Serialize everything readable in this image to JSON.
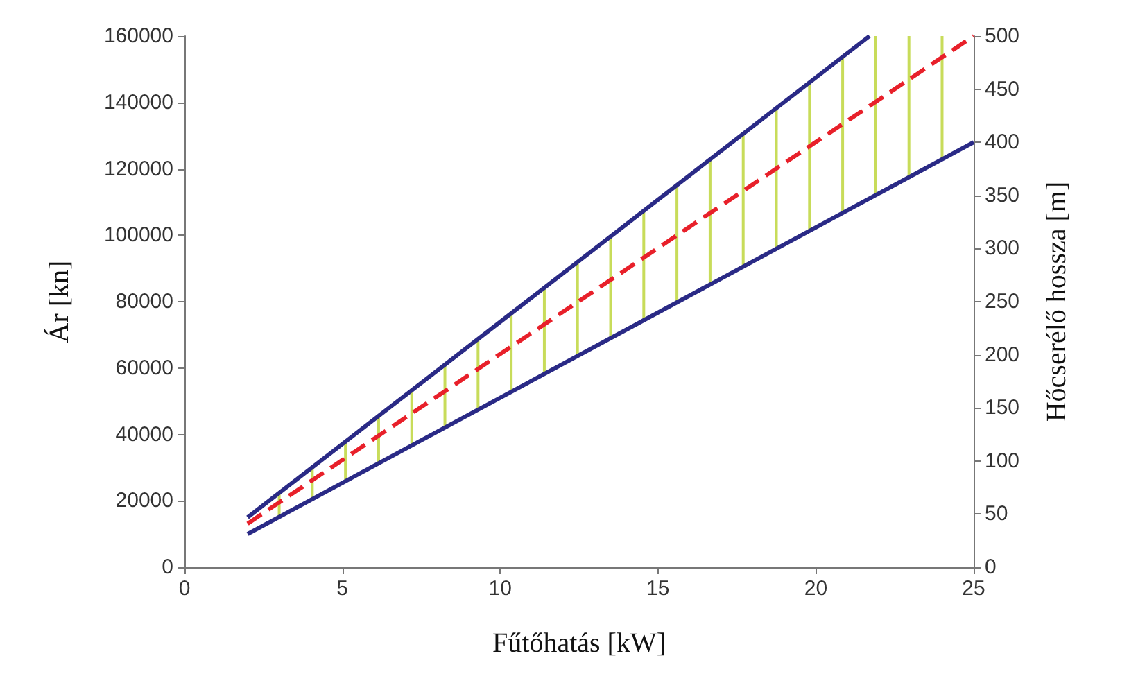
{
  "chart_data": {
    "type": "line",
    "xlabel": "Fűtőhatás [kW]",
    "ylabel": "Ár [kn]",
    "y2label": "Hőcserélő hossza [m]",
    "xlim": [
      0,
      25
    ],
    "xticks": [
      0,
      5,
      10,
      15,
      20,
      25
    ],
    "ylim": [
      0,
      160000
    ],
    "yticks": [
      0,
      20000,
      40000,
      60000,
      80000,
      100000,
      120000,
      140000,
      160000
    ],
    "y2lim": [
      0,
      500
    ],
    "y2ticks": [
      0,
      50,
      100,
      150,
      200,
      250,
      300,
      350,
      400,
      450,
      500
    ],
    "grid": false,
    "series": [
      {
        "type": "bar",
        "color": "#c8dc5a",
        "x": [
          3,
          4.05,
          5.1,
          6.15,
          7.2,
          8.25,
          9.3,
          10.35,
          11.4,
          12.45,
          13.5,
          14.55,
          15.6,
          16.65,
          17.7,
          18.75,
          19.8,
          20.85,
          21.9,
          22.95,
          24.0
        ],
        "base": [
          15000,
          21000,
          26000,
          31000,
          37000,
          42000,
          47000,
          53000,
          58000,
          64000,
          69000,
          74000,
          80000,
          85000,
          91000,
          96000,
          101000,
          107000,
          112000,
          117000,
          123000
        ],
        "values": [
          7000,
          9000,
          12000,
          15000,
          16000,
          19000,
          22000,
          23000,
          26000,
          28000,
          31000,
          33000,
          35000,
          38000,
          40000,
          42000,
          45000,
          47000,
          48000,
          43000,
          37000
        ]
      },
      {
        "color": "#2a2a86",
        "x": [
          2,
          21.7
        ],
        "values": [
          15000,
          160000
        ],
        "line_style": "solid"
      },
      {
        "color": "#2a2a86",
        "x": [
          2,
          25
        ],
        "values": [
          10000,
          128000
        ],
        "line_style": "solid"
      },
      {
        "color": "#e8202a",
        "x": [
          2,
          25
        ],
        "values": [
          41,
          500
        ],
        "axis": "y2",
        "line_style": "dashed"
      }
    ]
  }
}
